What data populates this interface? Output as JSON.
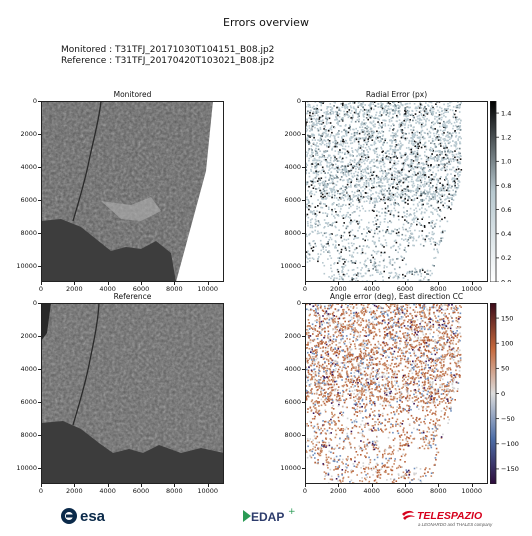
{
  "report": {
    "title": "Errors overview",
    "monitored_line": "Monitored : T31TFJ_20171030T104151_B08.jp2",
    "reference_line": "Reference : T31TFJ_20170420T103021_B08.jp2"
  },
  "chart_data": [
    {
      "type": "image",
      "title": "Monitored",
      "x_ticks": [
        0,
        2000,
        4000,
        6000,
        8000,
        10000
      ],
      "y_ticks": [
        0,
        2000,
        4000,
        6000,
        8000,
        10000
      ],
      "xlim": [
        0,
        10980
      ],
      "ylim": [
        10980,
        0
      ],
      "colormap": "gray"
    },
    {
      "type": "scatter",
      "title": "Radial Error (px)",
      "x_ticks": [
        0,
        2000,
        4000,
        6000,
        8000,
        10000
      ],
      "y_ticks": [
        0,
        2000,
        4000,
        6000,
        8000,
        10000
      ],
      "xlim": [
        0,
        10980
      ],
      "ylim": [
        10980,
        0
      ],
      "colorbar": {
        "ticks": [
          0.0,
          0.2,
          0.4,
          0.6,
          0.8,
          1.0,
          1.2,
          1.4
        ],
        "range": [
          0,
          1.5
        ],
        "colors": [
          "#ffffff",
          "#b7c8cf",
          "#000000"
        ]
      }
    },
    {
      "type": "image",
      "title": "Reference",
      "x_ticks": [
        0,
        2000,
        4000,
        6000,
        8000,
        10000
      ],
      "y_ticks": [
        0,
        2000,
        4000,
        6000,
        8000,
        10000
      ],
      "xlim": [
        0,
        10980
      ],
      "ylim": [
        10980,
        0
      ],
      "colormap": "gray"
    },
    {
      "type": "scatter",
      "title": "Angle error (deg), East direction CC",
      "x_ticks": [
        0,
        2000,
        4000,
        6000,
        8000,
        10000
      ],
      "y_ticks": [
        0,
        2000,
        4000,
        6000,
        8000,
        10000
      ],
      "xlim": [
        0,
        10980
      ],
      "ylim": [
        10980,
        0
      ],
      "colorbar": {
        "ticks": [
          150,
          100,
          50,
          0,
          -50,
          -100,
          -150
        ],
        "range": [
          -180,
          180
        ],
        "colors": [
          "#2d0b3a",
          "#4d6ea8",
          "#dcdcdc",
          "#c5683b",
          "#3a0b1a"
        ]
      }
    }
  ],
  "logos": {
    "esa": "esa",
    "edap": "EDAP",
    "telespazio": "TELESPAZIO",
    "telespazio_sub": "a LEONARDO and THALES company"
  }
}
